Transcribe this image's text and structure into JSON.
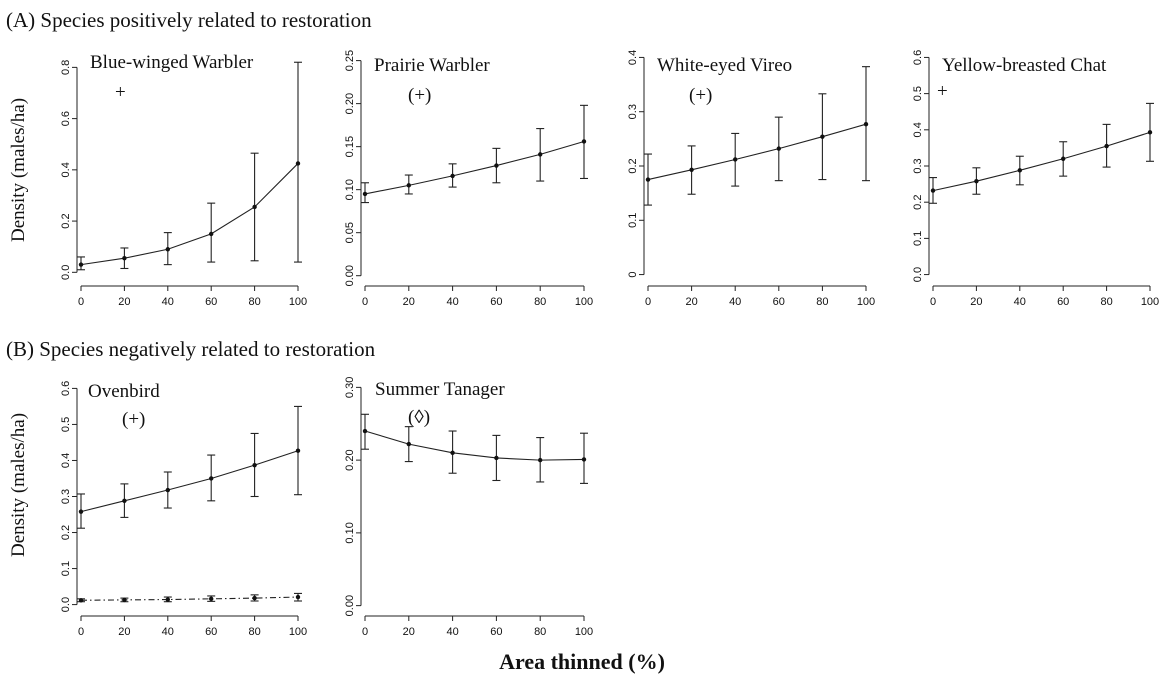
{
  "sections": {
    "a_title": "(A) Species positively related to restoration",
    "b_title": "(B) Species negatively related to restoration"
  },
  "xlabel": "Area thinned (%)",
  "ylabel": "Density (males/ha)",
  "chart_data": [
    {
      "type": "line",
      "title": "Blue-winged Warbler",
      "mark": "+",
      "x": [
        0,
        20,
        40,
        60,
        80,
        100
      ],
      "xticks": [
        "0",
        "20",
        "40",
        "60",
        "80",
        "100"
      ],
      "yticks": [
        "0.0",
        "0.2",
        "0.4",
        "0.6",
        "0.8"
      ],
      "ylim": [
        -0.03,
        0.86
      ],
      "series": [
        {
          "values": [
            0.03,
            0.055,
            0.09,
            0.15,
            0.255,
            0.425
          ],
          "lower": [
            0.01,
            0.015,
            0.03,
            0.04,
            0.045,
            0.04
          ],
          "upper": [
            0.06,
            0.095,
            0.155,
            0.27,
            0.465,
            0.82
          ],
          "style": "solid"
        }
      ]
    },
    {
      "type": "line",
      "title": "Prairie Warbler",
      "mark": "(+)",
      "x": [
        0,
        20,
        40,
        60,
        80,
        100
      ],
      "xticks": [
        "0",
        "20",
        "40",
        "60",
        "80",
        "100"
      ],
      "yticks": [
        "0.00",
        "0.05",
        "0.10",
        "0.15",
        "0.20",
        "0.25"
      ],
      "ylim": [
        -0.005,
        0.26
      ],
      "series": [
        {
          "values": [
            0.095,
            0.105,
            0.116,
            0.128,
            0.141,
            0.156
          ],
          "lower": [
            0.085,
            0.095,
            0.103,
            0.108,
            0.11,
            0.113
          ],
          "upper": [
            0.108,
            0.117,
            0.13,
            0.148,
            0.171,
            0.198
          ],
          "style": "solid"
        }
      ]
    },
    {
      "type": "line",
      "title": "White-eyed Vireo",
      "mark": "(+)",
      "x": [
        0,
        20,
        40,
        60,
        80,
        100
      ],
      "xticks": [
        "0",
        "20",
        "40",
        "60",
        "80",
        "100"
      ],
      "yticks": [
        "0",
        "0.1",
        "0.2",
        "0.3",
        "0.4"
      ],
      "ylim": [
        -0.01,
        0.41
      ],
      "series": [
        {
          "values": [
            0.175,
            0.193,
            0.212,
            0.232,
            0.254,
            0.277
          ],
          "lower": [
            0.128,
            0.148,
            0.163,
            0.173,
            0.175,
            0.173
          ],
          "upper": [
            0.222,
            0.237,
            0.26,
            0.29,
            0.333,
            0.383
          ],
          "style": "solid"
        }
      ]
    },
    {
      "type": "line",
      "title": "Yellow-breasted Chat",
      "mark": "+",
      "x": [
        0,
        20,
        40,
        60,
        80,
        100
      ],
      "xticks": [
        "0",
        "20",
        "40",
        "60",
        "80",
        "100"
      ],
      "yticks": [
        "0.0",
        "0.1",
        "0.2",
        "0.3",
        "0.4",
        "0.5",
        "0.6"
      ],
      "ylim": [
        -0.015,
        0.615
      ],
      "series": [
        {
          "values": [
            0.232,
            0.258,
            0.288,
            0.32,
            0.355,
            0.393
          ],
          "lower": [
            0.197,
            0.222,
            0.248,
            0.272,
            0.297,
            0.313
          ],
          "upper": [
            0.268,
            0.295,
            0.327,
            0.367,
            0.415,
            0.473
          ],
          "style": "solid"
        }
      ]
    },
    {
      "type": "line",
      "title": "Ovenbird",
      "mark": "(+)",
      "x": [
        0,
        20,
        40,
        60,
        80,
        100
      ],
      "xticks": [
        "0",
        "20",
        "40",
        "60",
        "80",
        "100"
      ],
      "yticks": [
        "0.0",
        "0.1",
        "0.2",
        "0.3",
        "0.4",
        "0.5",
        "0.6"
      ],
      "ylim": [
        -0.015,
        0.615
      ],
      "series": [
        {
          "values": [
            0.258,
            0.288,
            0.318,
            0.35,
            0.387,
            0.427
          ],
          "lower": [
            0.212,
            0.242,
            0.268,
            0.288,
            0.3,
            0.305
          ],
          "upper": [
            0.307,
            0.335,
            0.368,
            0.415,
            0.475,
            0.55
          ],
          "style": "solid"
        },
        {
          "values": [
            0.012,
            0.013,
            0.014,
            0.016,
            0.018,
            0.021
          ],
          "lower": [
            0.008,
            0.008,
            0.008,
            0.009,
            0.01,
            0.01
          ],
          "upper": [
            0.016,
            0.018,
            0.021,
            0.024,
            0.027,
            0.031
          ],
          "style": "dashdot"
        }
      ]
    },
    {
      "type": "line",
      "title": "Summer Tanager",
      "mark": "(◊)",
      "x": [
        0,
        20,
        40,
        60,
        80,
        100
      ],
      "xticks": [
        "0",
        "20",
        "40",
        "60",
        "80",
        "100"
      ],
      "yticks": [
        "0.00",
        "0.10",
        "0.20",
        "0.30"
      ],
      "ylim": [
        -0.006,
        0.306
      ],
      "series": [
        {
          "values": [
            0.24,
            0.222,
            0.21,
            0.203,
            0.2,
            0.201
          ],
          "lower": [
            0.215,
            0.198,
            0.182,
            0.172,
            0.17,
            0.168
          ],
          "upper": [
            0.263,
            0.246,
            0.24,
            0.234,
            0.231,
            0.237
          ],
          "style": "solid"
        }
      ]
    }
  ]
}
